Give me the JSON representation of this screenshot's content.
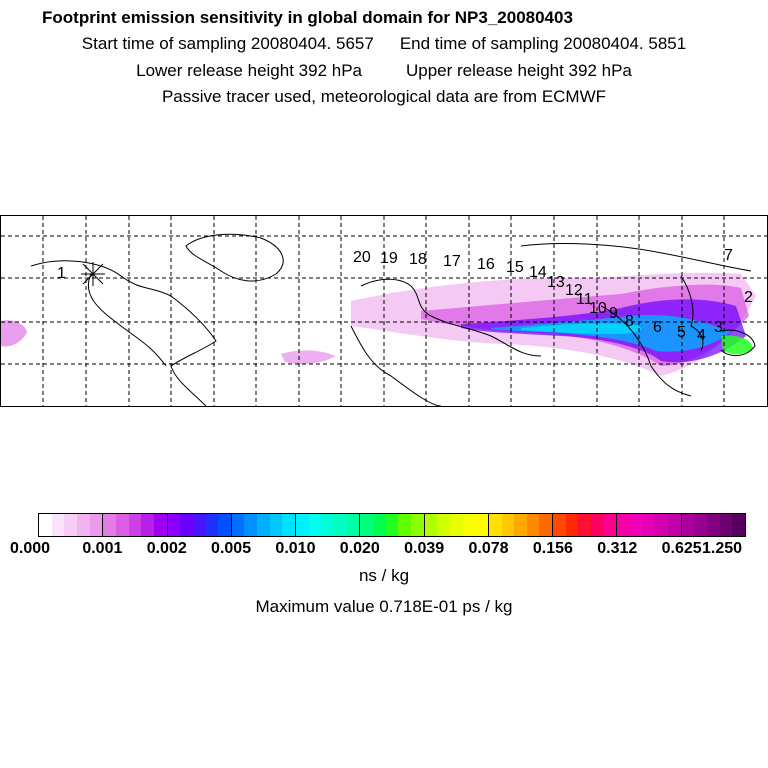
{
  "header": {
    "title": "Footprint emission sensitivity in global domain for NP3_20080403",
    "start_label": "Start time of sampling 20080404.  5657",
    "end_label": "End time of sampling 20080404.  5851",
    "lower_label": "Lower release height  392 hPa",
    "upper_label": "Upper release height  392 hPa",
    "note": "Passive tracer used, meteorological data are from ECMWF"
  },
  "map": {
    "trajectory_labels": [
      "1",
      "2",
      "3",
      "4",
      "5",
      "6",
      "7",
      "8",
      "9",
      "10",
      "11",
      "12",
      "13",
      "14",
      "15",
      "16",
      "17",
      "18",
      "19",
      "20"
    ],
    "release_marker": "release-point-icon"
  },
  "colorbar": {
    "ticks": [
      "0.000",
      "0.001",
      "0.002",
      "0.005",
      "0.010",
      "0.020",
      "0.039",
      "0.078",
      "0.156",
      "0.312",
      "0.625",
      "1.250"
    ],
    "segments": [
      [
        "#ffffff",
        "#fbe3fb",
        "#f6cdf6",
        "#f0b3f0",
        "#eb9aeb"
      ],
      [
        "#e47ce8",
        "#dc5ee6",
        "#cc40e4",
        "#b620e8",
        "#a000f0"
      ],
      [
        "#8a00ff",
        "#6a00ff",
        "#4a14ff",
        "#2030ff",
        "#0050ff"
      ],
      [
        "#0070ff",
        "#0090ff",
        "#00b0ff",
        "#00c8ff",
        "#00e0ff"
      ],
      [
        "#00f0ff",
        "#00ffee",
        "#00ffd8",
        "#00ffc0",
        "#00ffa0"
      ],
      [
        "#00ff7a",
        "#00ff50",
        "#20ff20",
        "#60ff00",
        "#8cff00"
      ],
      [
        "#b0ff00",
        "#d0ff00",
        "#e8ff00",
        "#f8ff00",
        "#fffa00"
      ],
      [
        "#ffe000",
        "#ffc800",
        "#ffa800",
        "#ff8a00",
        "#ff6a00"
      ],
      [
        "#ff4800",
        "#ff2800",
        "#ff1030",
        "#ff0060",
        "#ff0090"
      ],
      [
        "#f800a8",
        "#f000b8",
        "#e400b8",
        "#d400b0",
        "#c000a8"
      ],
      [
        "#ac009c",
        "#980090",
        "#820080",
        "#6c0070",
        "#560060"
      ]
    ],
    "unit": "ns / kg",
    "max_value": "Maximum value  0.718E-01 ps / kg"
  }
}
